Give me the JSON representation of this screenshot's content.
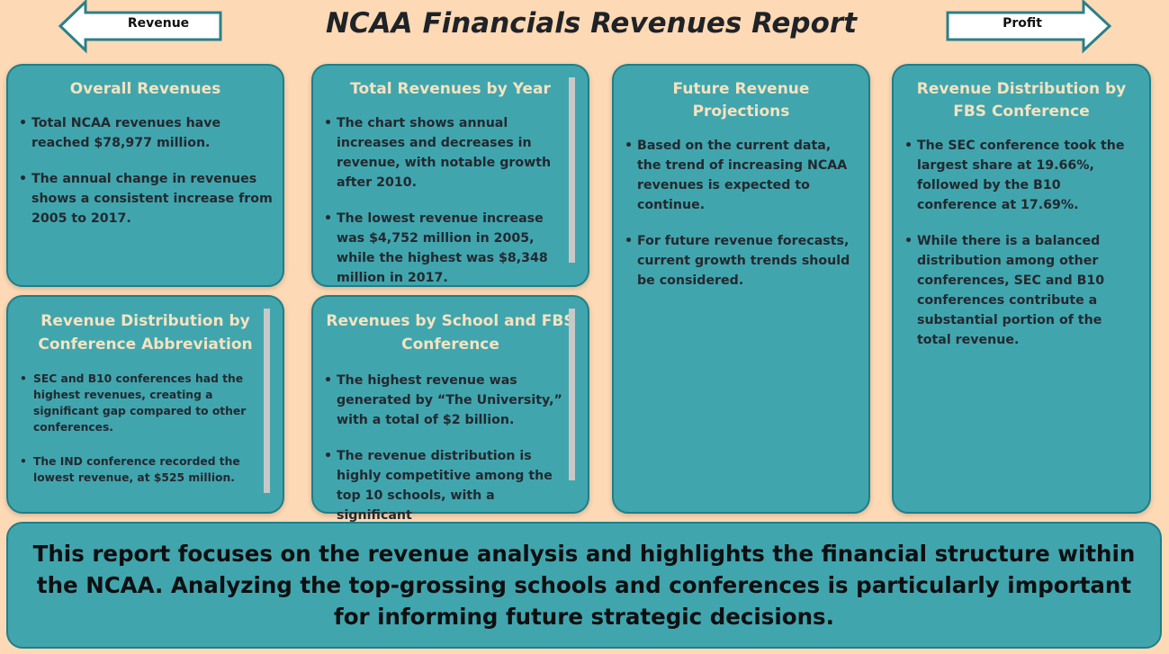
{
  "header": {
    "title": "NCAA Financials Revenues Report",
    "nav_left_label": "Revenue",
    "nav_right_label": "Profit"
  },
  "cards": {
    "overall": {
      "title": "Overall Revenues",
      "bullets": [
        "Total NCAA revenues have reached $78,977 million.",
        "The annual change in revenues shows a consistent increase from 2005 to 2017."
      ]
    },
    "by_year": {
      "title": "Total Revenues by Year",
      "bullets": [
        "The chart shows annual increases and decreases in revenue, with notable growth after 2010.",
        "The lowest revenue increase was $4,752 million in 2005, while the highest was $8,348 million in 2017."
      ]
    },
    "projections": {
      "title": "Future Revenue Projections",
      "bullets": [
        "Based on the current data, the trend of increasing NCAA revenues is expected to continue.",
        "For future revenue forecasts, current growth trends should be considered."
      ]
    },
    "fbs_distribution": {
      "title": "Revenue Distribution by FBS Conference",
      "bullets": [
        "The SEC conference took the largest share at 19.66%, followed by the B10 conference at 17.69%.",
        "While there is a balanced distribution among other conferences, SEC and B10 conferences contribute a substantial portion of the total revenue."
      ]
    },
    "abbr_distribution": {
      "title": "Revenue Distribution by Conference Abbreviation",
      "bullets": [
        "SEC and B10 conferences had the highest revenues, creating a significant gap compared to other conferences.",
        "The IND conference recorded the lowest revenue, at $525 million."
      ]
    },
    "school_fbs": {
      "title": "Revenues by School and FBS Conference",
      "bullets": [
        "The highest revenue was generated by “The University,” with a total of $2 billion.",
        "The revenue distribution is highly competitive among the top 10 schools, with a significant"
      ]
    }
  },
  "footer": {
    "text": "This report focuses on the revenue analysis and highlights the financial structure within the NCAA. Analyzing the top-grossing schools and conferences is particularly important for informing future strategic decisions."
  },
  "colors": {
    "background": "#fdd9b5",
    "card": "#41a5ae",
    "card_border": "#1f7e87",
    "card_title": "#f3e3c0"
  },
  "icons": [
    "arrow-left-icon",
    "arrow-right-icon"
  ]
}
